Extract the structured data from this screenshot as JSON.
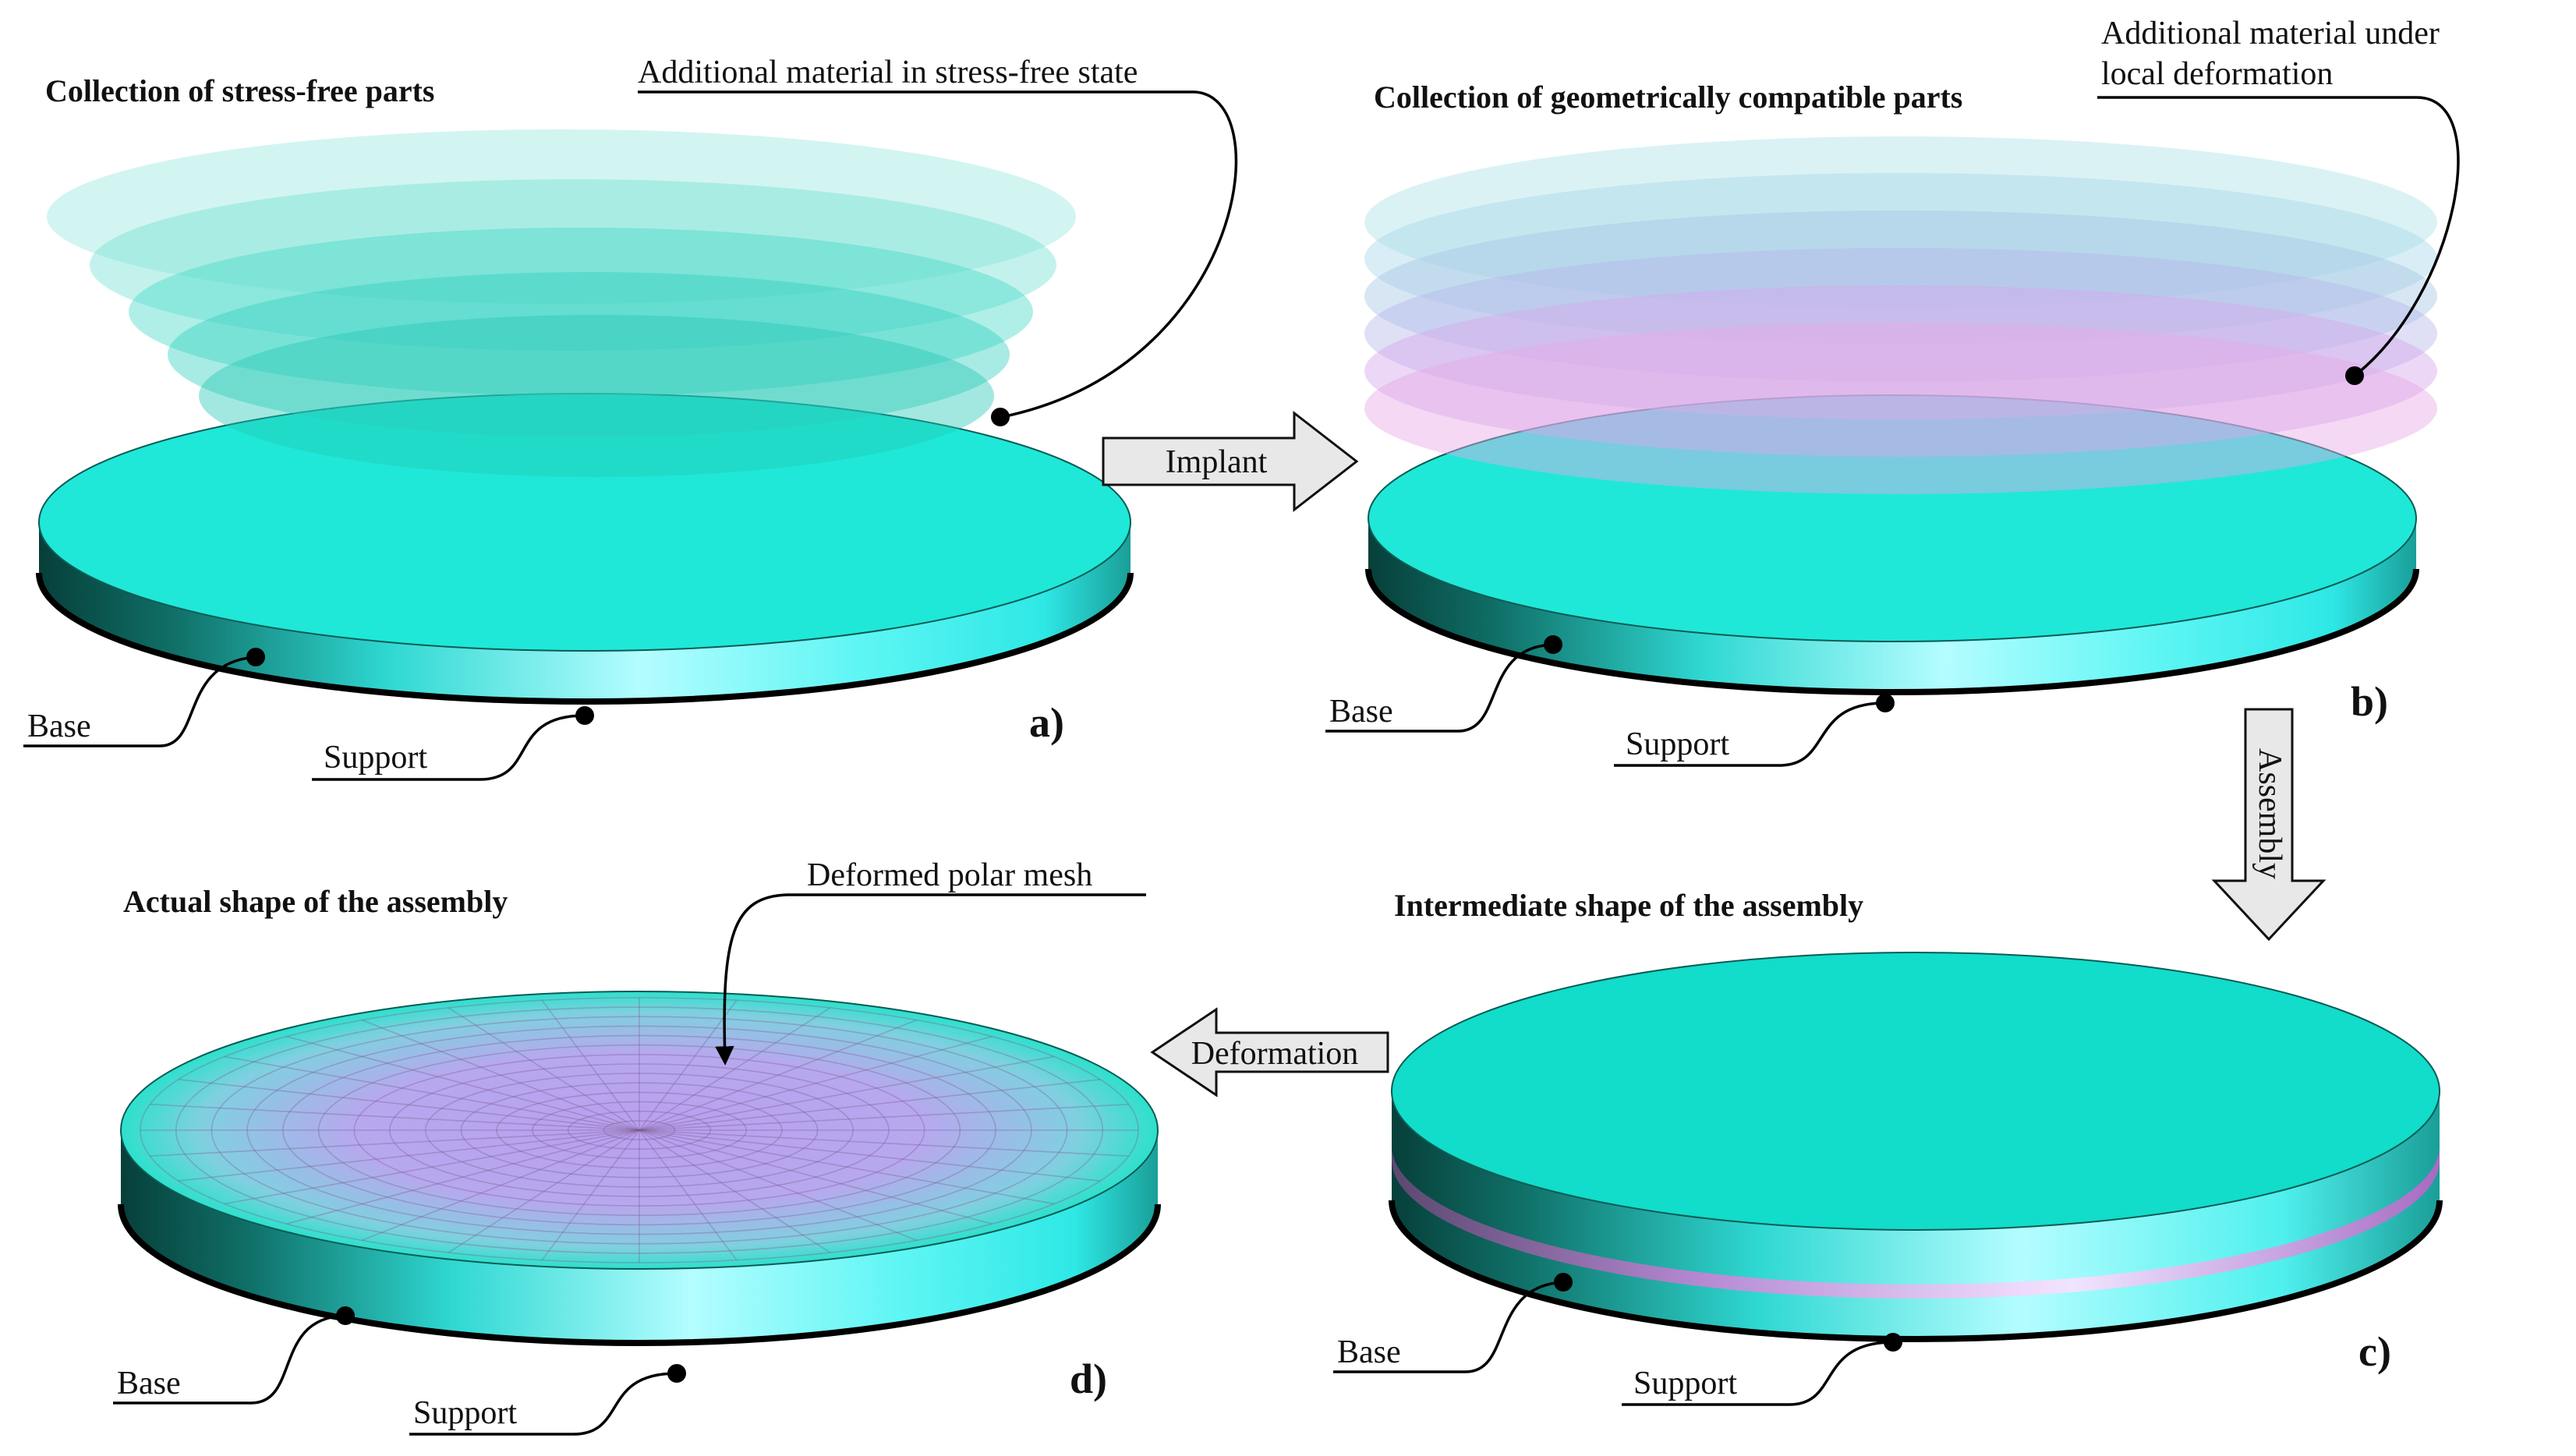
{
  "panels": {
    "a": {
      "label": "a)",
      "title": "Collection of stress-free parts",
      "note": "Additional material in stress-free state",
      "base": "Base",
      "support": "Support"
    },
    "b": {
      "label": "b)",
      "title": "Collection of geometrically compatible parts",
      "note_line1": "Additional material under",
      "note_line2": "local deformation",
      "base": "Base",
      "support": "Support"
    },
    "c": {
      "label": "c)",
      "title": "Intermediate shape of the assembly",
      "base": "Base",
      "support": "Support"
    },
    "d": {
      "label": "d)",
      "title": "Actual shape of the assembly",
      "note": "Deformed polar mesh",
      "base": "Base",
      "support": "Support"
    }
  },
  "arrows": {
    "implant": "Implant",
    "assembly": "Assembly",
    "deformation": "Deformation"
  },
  "colors": {
    "disc_top": "#1de8d6",
    "disc_side_dark": "#0a5e56",
    "disc_side_light": "#aefcff",
    "layer_mint": "#2ed8c4",
    "layer_pink": "#e8a0e8",
    "mesh_purple": "#b6a0f0"
  }
}
